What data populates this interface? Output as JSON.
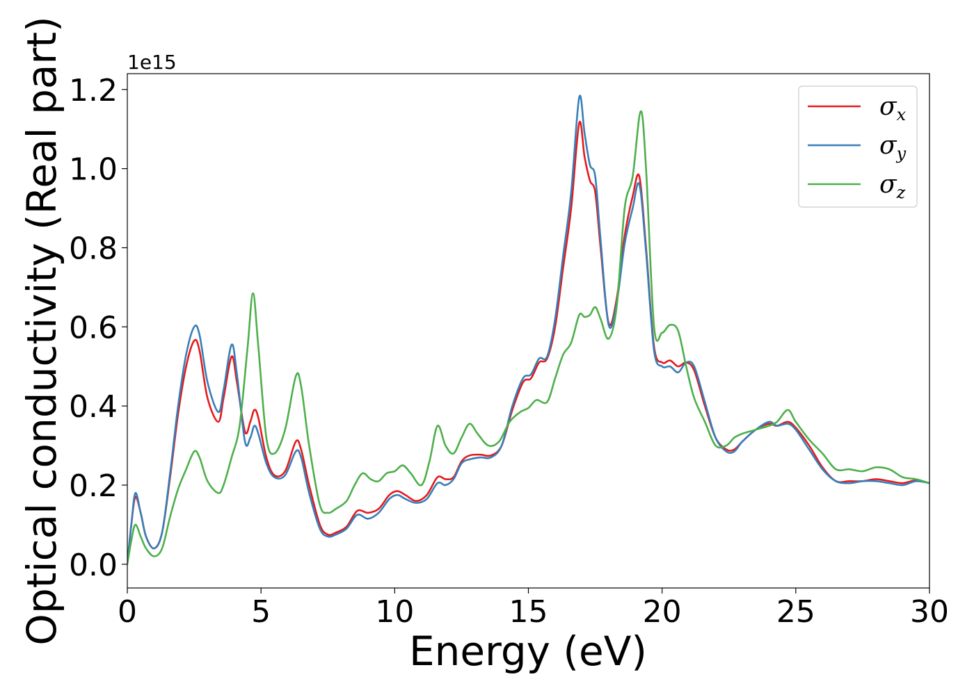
{
  "chart_data": {
    "type": "line",
    "xlabel": "Energy (eV)",
    "ylabel": "Optical conductivity (Real part)",
    "y_offset_label": "1e15",
    "xlim": [
      0,
      30
    ],
    "ylim": [
      -0.06,
      1.24
    ],
    "x_ticks": [
      0,
      5,
      10,
      15,
      20,
      25,
      30
    ],
    "x_tick_labels": [
      "0",
      "5",
      "10",
      "15",
      "20",
      "25",
      "30"
    ],
    "y_ticks": [
      0.0,
      0.2,
      0.4,
      0.6,
      0.8,
      1.0,
      1.2
    ],
    "y_tick_labels": [
      "0.0",
      "0.2",
      "0.4",
      "0.6",
      "0.8",
      "1.0",
      "1.2"
    ],
    "grid": false,
    "legend_position": "top-right",
    "series": [
      {
        "name": "σ",
        "subscript": "x",
        "color": "#e41a1c",
        "points": [
          [
            0,
            0
          ],
          [
            0.15,
            0.1
          ],
          [
            0.3,
            0.17
          ],
          [
            0.5,
            0.13
          ],
          [
            0.7,
            0.07
          ],
          [
            1.0,
            0.04
          ],
          [
            1.3,
            0.08
          ],
          [
            1.6,
            0.22
          ],
          [
            1.9,
            0.38
          ],
          [
            2.2,
            0.5
          ],
          [
            2.5,
            0.565
          ],
          [
            2.7,
            0.54
          ],
          [
            3.0,
            0.42
          ],
          [
            3.4,
            0.36
          ],
          [
            3.6,
            0.42
          ],
          [
            3.9,
            0.525
          ],
          [
            4.1,
            0.46
          ],
          [
            4.4,
            0.335
          ],
          [
            4.6,
            0.36
          ],
          [
            4.75,
            0.39
          ],
          [
            4.9,
            0.37
          ],
          [
            5.2,
            0.27
          ],
          [
            5.5,
            0.225
          ],
          [
            5.9,
            0.235
          ],
          [
            6.3,
            0.31
          ],
          [
            6.5,
            0.29
          ],
          [
            6.8,
            0.2
          ],
          [
            7.2,
            0.1
          ],
          [
            7.5,
            0.075
          ],
          [
            7.8,
            0.08
          ],
          [
            8.2,
            0.095
          ],
          [
            8.6,
            0.135
          ],
          [
            9.0,
            0.13
          ],
          [
            9.4,
            0.14
          ],
          [
            9.8,
            0.175
          ],
          [
            10.1,
            0.185
          ],
          [
            10.4,
            0.175
          ],
          [
            10.8,
            0.16
          ],
          [
            11.2,
            0.175
          ],
          [
            11.6,
            0.22
          ],
          [
            11.9,
            0.215
          ],
          [
            12.2,
            0.22
          ],
          [
            12.5,
            0.26
          ],
          [
            12.8,
            0.275
          ],
          [
            13.2,
            0.277
          ],
          [
            13.6,
            0.275
          ],
          [
            14.0,
            0.3
          ],
          [
            14.4,
            0.39
          ],
          [
            14.8,
            0.46
          ],
          [
            15.1,
            0.47
          ],
          [
            15.4,
            0.51
          ],
          [
            15.7,
            0.52
          ],
          [
            16.0,
            0.6
          ],
          [
            16.3,
            0.75
          ],
          [
            16.6,
            0.9
          ],
          [
            16.9,
            1.115
          ],
          [
            17.1,
            1.03
          ],
          [
            17.3,
            0.97
          ],
          [
            17.5,
            0.94
          ],
          [
            17.7,
            0.8
          ],
          [
            18.0,
            0.61
          ],
          [
            18.3,
            0.67
          ],
          [
            18.6,
            0.83
          ],
          [
            18.9,
            0.93
          ],
          [
            19.15,
            0.98
          ],
          [
            19.4,
            0.8
          ],
          [
            19.7,
            0.55
          ],
          [
            20.0,
            0.51
          ],
          [
            20.3,
            0.515
          ],
          [
            20.6,
            0.5
          ],
          [
            20.9,
            0.51
          ],
          [
            21.2,
            0.49
          ],
          [
            21.6,
            0.4
          ],
          [
            22.0,
            0.32
          ],
          [
            22.4,
            0.29
          ],
          [
            22.7,
            0.29
          ],
          [
            23.0,
            0.31
          ],
          [
            23.5,
            0.34
          ],
          [
            24.0,
            0.355
          ],
          [
            24.3,
            0.35
          ],
          [
            24.7,
            0.36
          ],
          [
            25.0,
            0.345
          ],
          [
            25.5,
            0.3
          ],
          [
            26.0,
            0.245
          ],
          [
            26.5,
            0.21
          ],
          [
            27.0,
            0.21
          ],
          [
            27.5,
            0.21
          ],
          [
            28.0,
            0.215
          ],
          [
            28.5,
            0.21
          ],
          [
            29.0,
            0.205
          ],
          [
            29.5,
            0.212
          ],
          [
            30.0,
            0.205
          ]
        ]
      },
      {
        "name": "σ",
        "subscript": "y",
        "color": "#377eb8",
        "points": [
          [
            0,
            0
          ],
          [
            0.15,
            0.1
          ],
          [
            0.3,
            0.18
          ],
          [
            0.5,
            0.13
          ],
          [
            0.7,
            0.07
          ],
          [
            1.0,
            0.04
          ],
          [
            1.3,
            0.08
          ],
          [
            1.6,
            0.23
          ],
          [
            1.9,
            0.4
          ],
          [
            2.2,
            0.53
          ],
          [
            2.5,
            0.6
          ],
          [
            2.7,
            0.58
          ],
          [
            3.0,
            0.46
          ],
          [
            3.4,
            0.385
          ],
          [
            3.6,
            0.44
          ],
          [
            3.9,
            0.555
          ],
          [
            4.1,
            0.48
          ],
          [
            4.4,
            0.31
          ],
          [
            4.6,
            0.32
          ],
          [
            4.75,
            0.35
          ],
          [
            4.9,
            0.33
          ],
          [
            5.2,
            0.255
          ],
          [
            5.5,
            0.22
          ],
          [
            5.9,
            0.225
          ],
          [
            6.3,
            0.285
          ],
          [
            6.5,
            0.27
          ],
          [
            6.8,
            0.18
          ],
          [
            7.2,
            0.09
          ],
          [
            7.5,
            0.07
          ],
          [
            7.8,
            0.075
          ],
          [
            8.2,
            0.09
          ],
          [
            8.6,
            0.125
          ],
          [
            9.0,
            0.115
          ],
          [
            9.4,
            0.13
          ],
          [
            9.8,
            0.165
          ],
          [
            10.1,
            0.175
          ],
          [
            10.4,
            0.165
          ],
          [
            10.8,
            0.155
          ],
          [
            11.2,
            0.165
          ],
          [
            11.6,
            0.205
          ],
          [
            11.9,
            0.2
          ],
          [
            12.2,
            0.215
          ],
          [
            12.5,
            0.255
          ],
          [
            12.8,
            0.265
          ],
          [
            13.2,
            0.27
          ],
          [
            13.6,
            0.27
          ],
          [
            14.0,
            0.3
          ],
          [
            14.4,
            0.4
          ],
          [
            14.8,
            0.47
          ],
          [
            15.1,
            0.48
          ],
          [
            15.4,
            0.52
          ],
          [
            15.7,
            0.525
          ],
          [
            16.0,
            0.62
          ],
          [
            16.3,
            0.78
          ],
          [
            16.6,
            0.94
          ],
          [
            16.9,
            1.18
          ],
          [
            17.1,
            1.09
          ],
          [
            17.3,
            1.01
          ],
          [
            17.5,
            0.98
          ],
          [
            17.7,
            0.82
          ],
          [
            18.0,
            0.605
          ],
          [
            18.3,
            0.66
          ],
          [
            18.6,
            0.81
          ],
          [
            18.9,
            0.9
          ],
          [
            19.15,
            0.96
          ],
          [
            19.4,
            0.79
          ],
          [
            19.7,
            0.54
          ],
          [
            20.0,
            0.5
          ],
          [
            20.3,
            0.5
          ],
          [
            20.6,
            0.485
          ],
          [
            20.9,
            0.51
          ],
          [
            21.2,
            0.5
          ],
          [
            21.6,
            0.41
          ],
          [
            22.0,
            0.32
          ],
          [
            22.4,
            0.285
          ],
          [
            22.7,
            0.285
          ],
          [
            23.0,
            0.31
          ],
          [
            23.5,
            0.34
          ],
          [
            24.0,
            0.36
          ],
          [
            24.3,
            0.35
          ],
          [
            24.7,
            0.355
          ],
          [
            25.0,
            0.34
          ],
          [
            25.5,
            0.29
          ],
          [
            26.0,
            0.24
          ],
          [
            26.5,
            0.21
          ],
          [
            27.0,
            0.205
          ],
          [
            27.5,
            0.21
          ],
          [
            28.0,
            0.21
          ],
          [
            28.5,
            0.205
          ],
          [
            29.0,
            0.2
          ],
          [
            29.5,
            0.21
          ],
          [
            30.0,
            0.205
          ]
        ]
      },
      {
        "name": "σ",
        "subscript": "z",
        "color": "#4daf4a",
        "points": [
          [
            0,
            0
          ],
          [
            0.15,
            0.06
          ],
          [
            0.3,
            0.1
          ],
          [
            0.5,
            0.07
          ],
          [
            0.7,
            0.04
          ],
          [
            1.0,
            0.02
          ],
          [
            1.3,
            0.04
          ],
          [
            1.6,
            0.12
          ],
          [
            1.9,
            0.19
          ],
          [
            2.2,
            0.24
          ],
          [
            2.5,
            0.285
          ],
          [
            2.7,
            0.27
          ],
          [
            3.0,
            0.21
          ],
          [
            3.4,
            0.18
          ],
          [
            3.6,
            0.2
          ],
          [
            3.9,
            0.27
          ],
          [
            4.2,
            0.35
          ],
          [
            4.5,
            0.55
          ],
          [
            4.7,
            0.685
          ],
          [
            4.9,
            0.55
          ],
          [
            5.2,
            0.32
          ],
          [
            5.5,
            0.28
          ],
          [
            5.9,
            0.34
          ],
          [
            6.3,
            0.475
          ],
          [
            6.5,
            0.45
          ],
          [
            6.8,
            0.3
          ],
          [
            7.2,
            0.15
          ],
          [
            7.5,
            0.13
          ],
          [
            7.8,
            0.14
          ],
          [
            8.2,
            0.16
          ],
          [
            8.5,
            0.2
          ],
          [
            8.8,
            0.23
          ],
          [
            9.1,
            0.215
          ],
          [
            9.4,
            0.21
          ],
          [
            9.7,
            0.23
          ],
          [
            10.0,
            0.235
          ],
          [
            10.3,
            0.25
          ],
          [
            10.6,
            0.23
          ],
          [
            11.0,
            0.2
          ],
          [
            11.3,
            0.26
          ],
          [
            11.6,
            0.35
          ],
          [
            11.9,
            0.3
          ],
          [
            12.2,
            0.28
          ],
          [
            12.5,
            0.32
          ],
          [
            12.8,
            0.355
          ],
          [
            13.1,
            0.33
          ],
          [
            13.5,
            0.3
          ],
          [
            13.9,
            0.31
          ],
          [
            14.3,
            0.36
          ],
          [
            14.7,
            0.385
          ],
          [
            15.0,
            0.395
          ],
          [
            15.3,
            0.415
          ],
          [
            15.7,
            0.41
          ],
          [
            16.0,
            0.47
          ],
          [
            16.3,
            0.53
          ],
          [
            16.6,
            0.56
          ],
          [
            16.9,
            0.63
          ],
          [
            17.1,
            0.625
          ],
          [
            17.3,
            0.63
          ],
          [
            17.5,
            0.65
          ],
          [
            17.7,
            0.62
          ],
          [
            18.0,
            0.57
          ],
          [
            18.3,
            0.65
          ],
          [
            18.6,
            0.9
          ],
          [
            18.9,
            0.98
          ],
          [
            19.2,
            1.145
          ],
          [
            19.4,
            1.0
          ],
          [
            19.7,
            0.6
          ],
          [
            20.0,
            0.585
          ],
          [
            20.3,
            0.605
          ],
          [
            20.6,
            0.59
          ],
          [
            20.9,
            0.5
          ],
          [
            21.2,
            0.42
          ],
          [
            21.6,
            0.36
          ],
          [
            22.0,
            0.3
          ],
          [
            22.4,
            0.3
          ],
          [
            22.7,
            0.32
          ],
          [
            23.0,
            0.33
          ],
          [
            23.5,
            0.34
          ],
          [
            24.0,
            0.35
          ],
          [
            24.3,
            0.36
          ],
          [
            24.7,
            0.39
          ],
          [
            25.0,
            0.36
          ],
          [
            25.5,
            0.315
          ],
          [
            26.0,
            0.28
          ],
          [
            26.5,
            0.24
          ],
          [
            27.0,
            0.24
          ],
          [
            27.5,
            0.235
          ],
          [
            28.0,
            0.245
          ],
          [
            28.5,
            0.24
          ],
          [
            29.0,
            0.22
          ],
          [
            29.5,
            0.215
          ],
          [
            30.0,
            0.205
          ]
        ]
      }
    ]
  }
}
